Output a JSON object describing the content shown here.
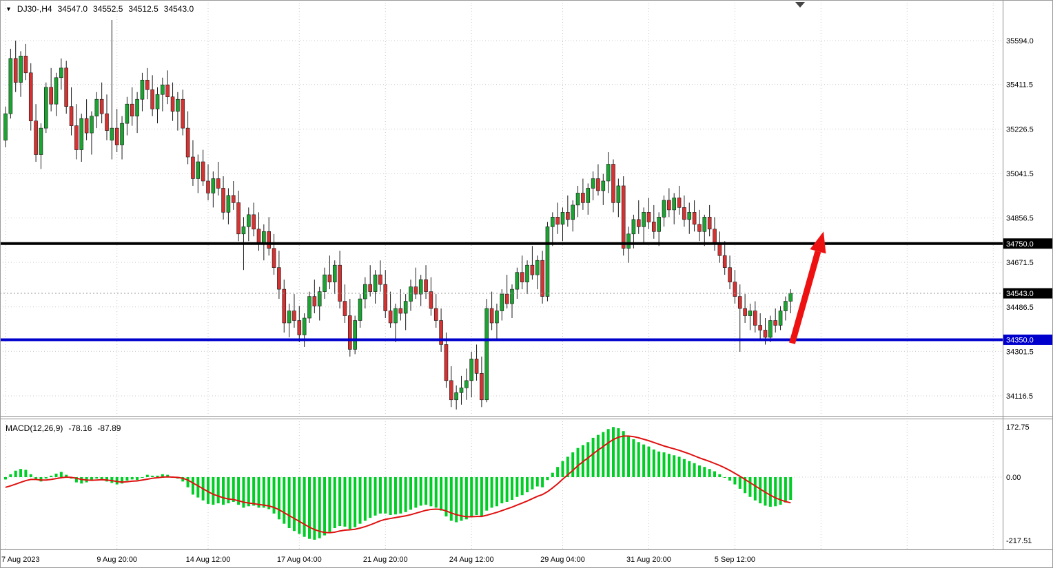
{
  "window": {
    "collapse_icon": "▼",
    "shift_marker_icon": "▼",
    "symbol_timeframe": "DJ30-,H4",
    "ohlc_open": "34547.0",
    "ohlc_high": "34552.5",
    "ohlc_low": "34512.5",
    "ohlc_close": "34543.0"
  },
  "macd_panel": {
    "label": "MACD(12,26,9)",
    "macd_value": "-78.16",
    "signal_value": "-87.89"
  },
  "colors": {
    "bull": "#1BA431",
    "bear": "#D63232",
    "wick": "#1a1a1a",
    "histogram": "#00CE26",
    "signal_line": "#E01010",
    "grid": "#c9c9c9",
    "resistance_line": "#000000",
    "support_line": "#0000CD",
    "arrow": "#EE1111",
    "current_tag_bg": "#000000",
    "axis_text": "#000000"
  },
  "chart_data": {
    "type": "candlestick",
    "symbol": "DJ30-",
    "timeframe": "H4",
    "grid": true,
    "price_ylim": [
      34045,
      35740
    ],
    "macd_ylim": [
      -248,
      192
    ],
    "current_price": 34543.0,
    "price_axis": {
      "ticks": [
        35594.0,
        35411.5,
        35226.5,
        35041.5,
        34856.5,
        34671.5,
        34486.5,
        34301.5,
        34116.5
      ]
    },
    "time_axis": {
      "labels": [
        "7 Aug 2023",
        "9 Aug 20:00",
        "14 Aug 12:00",
        "17 Aug 04:00",
        "21 Aug 20:00",
        "24 Aug 12:00",
        "29 Aug 04:00",
        "31 Aug 20:00",
        "5 Sep 12:00"
      ],
      "tick_indices": [
        0,
        22,
        40,
        58,
        75,
        92,
        110,
        127,
        144
      ],
      "future_tick_indices": [
        161,
        178,
        195
      ]
    },
    "hlines": [
      {
        "name": "resistance-line",
        "price": 34750.0,
        "label": "34750.0",
        "color": "#000000"
      },
      {
        "name": "support-line",
        "price": 34350.0,
        "label": "34350.0",
        "color": "#0000CD"
      }
    ],
    "arrow": {
      "from_index": 155.3,
      "from_price": 34335,
      "to_index": 161.5,
      "to_price": 34800
    },
    "candles": [
      [
        35180,
        35320,
        35150,
        35290
      ],
      [
        35290,
        35560,
        35270,
        35520
      ],
      [
        35520,
        35594,
        35380,
        35420
      ],
      [
        35420,
        35550,
        35360,
        35530
      ],
      [
        35530,
        35580,
        35430,
        35460
      ],
      [
        35460,
        35500,
        35220,
        35260
      ],
      [
        35260,
        35330,
        35090,
        35120
      ],
      [
        35120,
        35250,
        35060,
        35230
      ],
      [
        35230,
        35420,
        35210,
        35400
      ],
      [
        35400,
        35480,
        35300,
        35330
      ],
      [
        35330,
        35460,
        35280,
        35440
      ],
      [
        35440,
        35520,
        35390,
        35480
      ],
      [
        35480,
        35510,
        35290,
        35320
      ],
      [
        35320,
        35400,
        35200,
        35240
      ],
      [
        35240,
        35330,
        35100,
        35140
      ],
      [
        35140,
        35290,
        35090,
        35270
      ],
      [
        35270,
        35350,
        35180,
        35210
      ],
      [
        35210,
        35300,
        35120,
        35280
      ],
      [
        35280,
        35380,
        35230,
        35350
      ],
      [
        35350,
        35420,
        35250,
        35290
      ],
      [
        35290,
        35370,
        35180,
        35220
      ],
      [
        35180,
        35680,
        35100,
        35230
      ],
      [
        35230,
        35310,
        35130,
        35160
      ],
      [
        35160,
        35280,
        35100,
        35250
      ],
      [
        35250,
        35360,
        35200,
        35330
      ],
      [
        35330,
        35400,
        35240,
        35280
      ],
      [
        35280,
        35380,
        35210,
        35350
      ],
      [
        35350,
        35460,
        35300,
        35430
      ],
      [
        35430,
        35480,
        35350,
        35390
      ],
      [
        35390,
        35450,
        35280,
        35310
      ],
      [
        35310,
        35400,
        35250,
        35370
      ],
      [
        35370,
        35440,
        35300,
        35410
      ],
      [
        35410,
        35470,
        35330,
        35360
      ],
      [
        35360,
        35420,
        35260,
        35300
      ],
      [
        35300,
        35380,
        35220,
        35350
      ],
      [
        35350,
        35390,
        35200,
        35230
      ],
      [
        35230,
        35300,
        35080,
        35110
      ],
      [
        35110,
        35180,
        34990,
        35020
      ],
      [
        35020,
        35120,
        34960,
        35090
      ],
      [
        35090,
        35140,
        34990,
        35010
      ],
      [
        35010,
        35080,
        34930,
        34960
      ],
      [
        34960,
        35050,
        34900,
        35020
      ],
      [
        35020,
        35090,
        34950,
        34980
      ],
      [
        34980,
        35030,
        34850,
        34880
      ],
      [
        34880,
        34980,
        34830,
        34950
      ],
      [
        34950,
        35010,
        34890,
        34920
      ],
      [
        34920,
        34970,
        34760,
        34790
      ],
      [
        34790,
        34860,
        34640,
        34820
      ],
      [
        34820,
        34900,
        34760,
        34870
      ],
      [
        34870,
        34920,
        34780,
        34810
      ],
      [
        34810,
        34880,
        34720,
        34750
      ],
      [
        34750,
        34830,
        34680,
        34800
      ],
      [
        34800,
        34860,
        34700,
        34730
      ],
      [
        34730,
        34790,
        34620,
        34650
      ],
      [
        34650,
        34720,
        34520,
        34560
      ],
      [
        34560,
        34600,
        34380,
        34420
      ],
      [
        34420,
        34500,
        34360,
        34470
      ],
      [
        34470,
        34540,
        34400,
        34430
      ],
      [
        34430,
        34490,
        34340,
        34370
      ],
      [
        34370,
        34460,
        34320,
        34440
      ],
      [
        34440,
        34550,
        34420,
        34530
      ],
      [
        34530,
        34600,
        34460,
        34490
      ],
      [
        34490,
        34570,
        34430,
        34550
      ],
      [
        34550,
        34650,
        34520,
        34620
      ],
      [
        34620,
        34700,
        34560,
        34590
      ],
      [
        34590,
        34680,
        34540,
        34660
      ],
      [
        34660,
        34720,
        34480,
        34510
      ],
      [
        34510,
        34580,
        34420,
        34450
      ],
      [
        34450,
        34520,
        34280,
        34310
      ],
      [
        34310,
        34450,
        34290,
        34430
      ],
      [
        34430,
        34540,
        34400,
        34520
      ],
      [
        34520,
        34610,
        34480,
        34580
      ],
      [
        34580,
        34660,
        34530,
        34550
      ],
      [
        34550,
        34640,
        34500,
        34620
      ],
      [
        34620,
        34680,
        34550,
        34580
      ],
      [
        34580,
        34640,
        34440,
        34470
      ],
      [
        34470,
        34550,
        34400,
        34420
      ],
      [
        34420,
        34500,
        34340,
        34480
      ],
      [
        34480,
        34560,
        34430,
        34460
      ],
      [
        34460,
        34540,
        34390,
        34510
      ],
      [
        34510,
        34600,
        34470,
        34570
      ],
      [
        34570,
        34650,
        34520,
        34540
      ],
      [
        34540,
        34620,
        34490,
        34600
      ],
      [
        34600,
        34660,
        34520,
        34550
      ],
      [
        34550,
        34610,
        34450,
        34480
      ],
      [
        34480,
        34540,
        34400,
        34430
      ],
      [
        34430,
        34480,
        34300,
        34330
      ],
      [
        34330,
        34380,
        34150,
        34180
      ],
      [
        34180,
        34240,
        34070,
        34100
      ],
      [
        34100,
        34160,
        34060,
        34130
      ],
      [
        34130,
        34200,
        34080,
        34150
      ],
      [
        34150,
        34230,
        34100,
        34180
      ],
      [
        34180,
        34300,
        34110,
        34270
      ],
      [
        34270,
        34330,
        34180,
        34210
      ],
      [
        34210,
        34280,
        34070,
        34100
      ],
      [
        34100,
        34520,
        34090,
        34480
      ],
      [
        34480,
        34550,
        34390,
        34420
      ],
      [
        34420,
        34500,
        34350,
        34470
      ],
      [
        34470,
        34560,
        34430,
        34540
      ],
      [
        34540,
        34620,
        34480,
        34500
      ],
      [
        34500,
        34580,
        34440,
        34560
      ],
      [
        34560,
        34650,
        34520,
        34630
      ],
      [
        34630,
        34700,
        34560,
        34590
      ],
      [
        34590,
        34680,
        34540,
        34660
      ],
      [
        34660,
        34740,
        34600,
        34620
      ],
      [
        34620,
        34700,
        34560,
        34680
      ],
      [
        34680,
        34720,
        34500,
        34530
      ],
      [
        34530,
        34840,
        34510,
        34820
      ],
      [
        34820,
        34880,
        34740,
        34860
      ],
      [
        34860,
        34920,
        34790,
        34830
      ],
      [
        34830,
        34900,
        34760,
        34880
      ],
      [
        34880,
        34950,
        34820,
        34850
      ],
      [
        34850,
        34930,
        34800,
        34910
      ],
      [
        34910,
        34990,
        34860,
        34960
      ],
      [
        34960,
        35020,
        34890,
        34920
      ],
      [
        34920,
        35000,
        34870,
        34980
      ],
      [
        34980,
        35050,
        34930,
        35020
      ],
      [
        35020,
        35080,
        34950,
        34970
      ],
      [
        34970,
        35040,
        34910,
        35010
      ],
      [
        35010,
        35130,
        34960,
        35080
      ],
      [
        35080,
        35100,
        34880,
        34920
      ],
      [
        34920,
        35020,
        34860,
        34990
      ],
      [
        34990,
        35030,
        34700,
        34730
      ],
      [
        34730,
        34820,
        34670,
        34790
      ],
      [
        34790,
        34870,
        34730,
        34850
      ],
      [
        34850,
        34930,
        34790,
        34820
      ],
      [
        34820,
        34900,
        34750,
        34880
      ],
      [
        34880,
        34940,
        34810,
        34840
      ],
      [
        34840,
        34910,
        34770,
        34800
      ],
      [
        34800,
        34880,
        34740,
        34860
      ],
      [
        34860,
        34950,
        34820,
        34930
      ],
      [
        34930,
        34980,
        34860,
        34890
      ],
      [
        34890,
        34960,
        34830,
        34940
      ],
      [
        34940,
        34990,
        34870,
        34900
      ],
      [
        34900,
        34950,
        34820,
        34850
      ],
      [
        34850,
        34920,
        34790,
        34880
      ],
      [
        34880,
        34930,
        34800,
        34830
      ],
      [
        34830,
        34890,
        34760,
        34800
      ],
      [
        34800,
        34870,
        34740,
        34860
      ],
      [
        34860,
        34910,
        34780,
        34810
      ],
      [
        34810,
        34860,
        34720,
        34750
      ],
      [
        34750,
        34800,
        34670,
        34700
      ],
      [
        34700,
        34760,
        34620,
        34650
      ],
      [
        34650,
        34700,
        34560,
        34590
      ],
      [
        34590,
        34640,
        34500,
        34530
      ],
      [
        34530,
        34580,
        34300,
        34480
      ],
      [
        34480,
        34540,
        34420,
        34450
      ],
      [
        34450,
        34500,
        34390,
        34470
      ],
      [
        34470,
        34510,
        34380,
        34410
      ],
      [
        34410,
        34460,
        34350,
        34390
      ],
      [
        34390,
        34440,
        34330,
        34360
      ],
      [
        34360,
        34450,
        34340,
        34430
      ],
      [
        34430,
        34480,
        34380,
        34410
      ],
      [
        34410,
        34490,
        34390,
        34470
      ],
      [
        34470,
        34530,
        34430,
        34510
      ],
      [
        34510,
        34560,
        34460,
        34543
      ]
    ],
    "macd": {
      "axis_ticks": [
        172.75,
        0.0,
        -217.51
      ],
      "histogram": [
        -8,
        10,
        22,
        28,
        25,
        10,
        -8,
        -15,
        -5,
        5,
        12,
        18,
        8,
        -5,
        -18,
        -22,
        -18,
        -12,
        -5,
        -8,
        -15,
        -20,
        -25,
        -22,
        -12,
        -8,
        -10,
        0,
        8,
        5,
        5,
        10,
        8,
        -2,
        -5,
        -15,
        -35,
        -60,
        -70,
        -80,
        -92,
        -95,
        -90,
        -95,
        -90,
        -85,
        -95,
        -105,
        -100,
        -98,
        -105,
        -105,
        -110,
        -125,
        -145,
        -160,
        -175,
        -185,
        -195,
        -205,
        -212,
        -215,
        -210,
        -200,
        -188,
        -175,
        -168,
        -170,
        -178,
        -172,
        -160,
        -150,
        -140,
        -132,
        -125,
        -125,
        -130,
        -128,
        -125,
        -120,
        -112,
        -105,
        -98,
        -95,
        -100,
        -105,
        -115,
        -135,
        -150,
        -155,
        -150,
        -145,
        -135,
        -130,
        -135,
        -115,
        -105,
        -100,
        -90,
        -85,
        -78,
        -68,
        -62,
        -52,
        -42,
        -32,
        -35,
        -10,
        15,
        35,
        55,
        70,
        85,
        100,
        110,
        120,
        135,
        145,
        155,
        165,
        172,
        168,
        158,
        140,
        130,
        120,
        112,
        105,
        95,
        88,
        85,
        80,
        75,
        70,
        62,
        55,
        48,
        40,
        35,
        28,
        20,
        10,
        0,
        -12,
        -25,
        -40,
        -55,
        -68,
        -80,
        -90,
        -98,
        -102,
        -100,
        -95,
        -87,
        -78
      ],
      "signal": [
        -35,
        -30,
        -24,
        -18,
        -12,
        -8,
        -8,
        -10,
        -10,
        -8,
        -5,
        -2,
        0,
        -1,
        -4,
        -8,
        -10,
        -11,
        -10,
        -9,
        -10,
        -12,
        -15,
        -17,
        -16,
        -14,
        -13,
        -10,
        -7,
        -4,
        -2,
        0,
        1,
        0,
        -1,
        -4,
        -10,
        -20,
        -30,
        -40,
        -50,
        -59,
        -65,
        -71,
        -75,
        -77,
        -81,
        -86,
        -89,
        -91,
        -94,
        -96,
        -99,
        -104,
        -112,
        -122,
        -132,
        -142,
        -152,
        -162,
        -172,
        -180,
        -186,
        -190,
        -191,
        -189,
        -185,
        -182,
        -181,
        -179,
        -175,
        -170,
        -164,
        -157,
        -150,
        -145,
        -142,
        -139,
        -136,
        -133,
        -129,
        -124,
        -119,
        -114,
        -111,
        -110,
        -111,
        -116,
        -123,
        -129,
        -133,
        -136,
        -136,
        -135,
        -135,
        -131,
        -126,
        -121,
        -115,
        -109,
        -103,
        -96,
        -89,
        -82,
        -74,
        -66,
        -60,
        -50,
        -37,
        -23,
        -7,
        8,
        23,
        39,
        53,
        66,
        80,
        93,
        105,
        118,
        129,
        137,
        141,
        141,
        139,
        135,
        130,
        125,
        119,
        113,
        107,
        102,
        97,
        92,
        86,
        80,
        73,
        66,
        60,
        54,
        47,
        40,
        32,
        23,
        13,
        3,
        -8,
        -19,
        -30,
        -41,
        -52,
        -62,
        -71,
        -78,
        -84,
        -88
      ]
    }
  }
}
